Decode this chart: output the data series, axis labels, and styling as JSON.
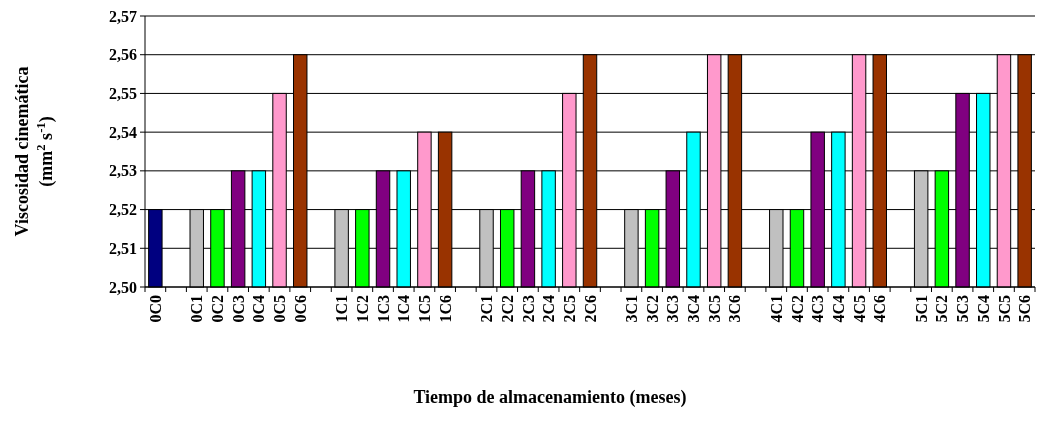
{
  "chart_data": {
    "type": "bar",
    "xlabel": "Tiempo de almacenamiento (meses)",
    "ylabel": "Viscosidad cinemática\n(mm$^{2}$ s$^{-1}$)",
    "categories": [
      "0C0",
      null,
      "0C1",
      "0C2",
      "0C3",
      "0C4",
      "0C5",
      "0C6",
      null,
      "1C1",
      "1C2",
      "1C3",
      "1C4",
      "1C5",
      "1C6",
      null,
      "2C1",
      "2C2",
      "2C3",
      "2C4",
      "2C5",
      "2C6",
      null,
      "3C1",
      "3C2",
      "3C3",
      "3C4",
      "3C5",
      "3C6",
      null,
      "4C1",
      "4C2",
      "4C3",
      "4C4",
      "4C5",
      "4C6",
      null,
      "5C1",
      "5C2",
      "5C3",
      "5C4",
      "5C5",
      "5C6"
    ],
    "values": [
      2.52,
      null,
      2.52,
      2.52,
      2.53,
      2.53,
      2.55,
      2.56,
      null,
      2.52,
      2.52,
      2.53,
      2.53,
      2.54,
      2.54,
      null,
      2.52,
      2.52,
      2.53,
      2.53,
      2.55,
      2.56,
      null,
      2.52,
      2.52,
      2.53,
      2.54,
      2.56,
      2.56,
      null,
      2.52,
      2.52,
      2.54,
      2.54,
      2.56,
      2.56,
      null,
      2.53,
      2.53,
      2.55,
      2.55,
      2.56,
      2.56
    ],
    "colors": [
      "#000080",
      null,
      "#c0c0c0",
      "#00ff00",
      "#800080",
      "#00ffff",
      "#ff99cc",
      "#993300",
      null,
      "#c0c0c0",
      "#00ff00",
      "#800080",
      "#00ffff",
      "#ff99cc",
      "#993300",
      null,
      "#c0c0c0",
      "#00ff00",
      "#800080",
      "#00ffff",
      "#ff99cc",
      "#993300",
      null,
      "#c0c0c0",
      "#00ff00",
      "#800080",
      "#00ffff",
      "#ff99cc",
      "#993300",
      null,
      "#c0c0c0",
      "#00ff00",
      "#800080",
      "#00ffff",
      "#ff99cc",
      "#993300",
      null,
      "#c0c0c0",
      "#00ff00",
      "#800080",
      "#00ffff",
      "#ff99cc",
      "#993300"
    ],
    "ylim": [
      2.5,
      2.57
    ],
    "yticks": [
      {
        "value": 2.5,
        "label": "2,50"
      },
      {
        "value": 2.51,
        "label": "2,51"
      },
      {
        "value": 2.52,
        "label": "2,52"
      },
      {
        "value": 2.53,
        "label": "2,53"
      },
      {
        "value": 2.54,
        "label": "2,54"
      },
      {
        "value": 2.55,
        "label": "2,55"
      },
      {
        "value": 2.56,
        "label": "2,56"
      },
      {
        "value": 2.57,
        "label": "2,57"
      }
    ],
    "grid": "y"
  }
}
